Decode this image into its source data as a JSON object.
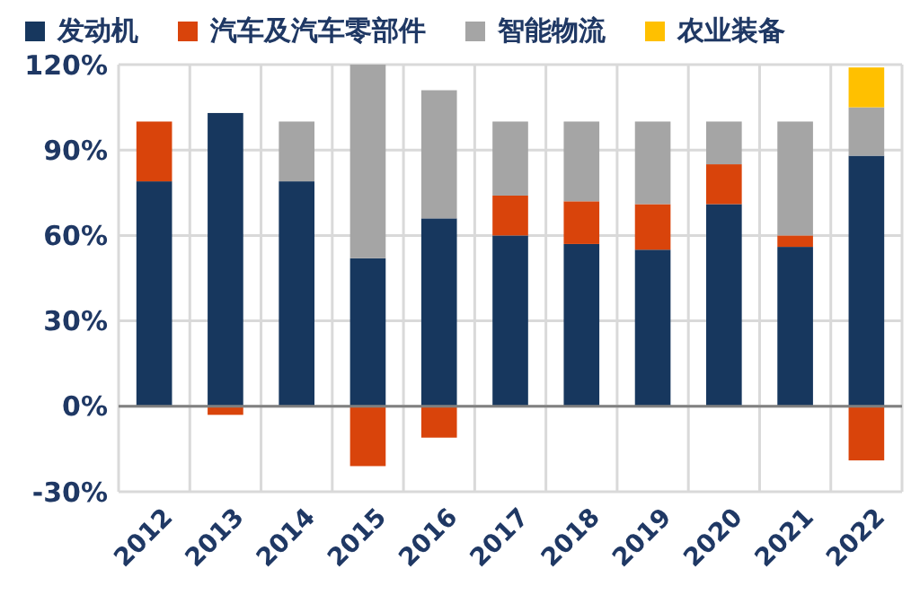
{
  "chart_data": {
    "type": "bar",
    "stacked": true,
    "categories": [
      "2012",
      "2013",
      "2014",
      "2015",
      "2016",
      "2017",
      "2018",
      "2019",
      "2020",
      "2021",
      "2022"
    ],
    "series": [
      {
        "name": "发动机",
        "color": "#17375e",
        "values": [
          79,
          103,
          79,
          52,
          66,
          60,
          57,
          55,
          71,
          56,
          88
        ]
      },
      {
        "name": "汽车及汽车零部件",
        "color": "#d9440b",
        "values": [
          21,
          -3,
          null,
          -21,
          -11,
          14,
          15,
          16,
          14,
          4,
          -19
        ]
      },
      {
        "name": "智能物流",
        "color": "#a5a5a5",
        "values": [
          null,
          null,
          21,
          68,
          45,
          26,
          28,
          29,
          15,
          40,
          17
        ]
      },
      {
        "name": "农业装备",
        "color": "#ffc000",
        "values": [
          null,
          null,
          null,
          null,
          null,
          null,
          null,
          null,
          null,
          null,
          14
        ]
      }
    ],
    "ylim": [
      -30,
      120
    ],
    "yticks": [
      {
        "value": -30,
        "label": "-30%"
      },
      {
        "value": 0,
        "label": "0%"
      },
      {
        "value": 30,
        "label": "30%"
      },
      {
        "value": 60,
        "label": "60%"
      },
      {
        "value": 90,
        "label": "90%"
      },
      {
        "value": 120,
        "label": "120%"
      }
    ],
    "grid": true,
    "legend": "top"
  }
}
